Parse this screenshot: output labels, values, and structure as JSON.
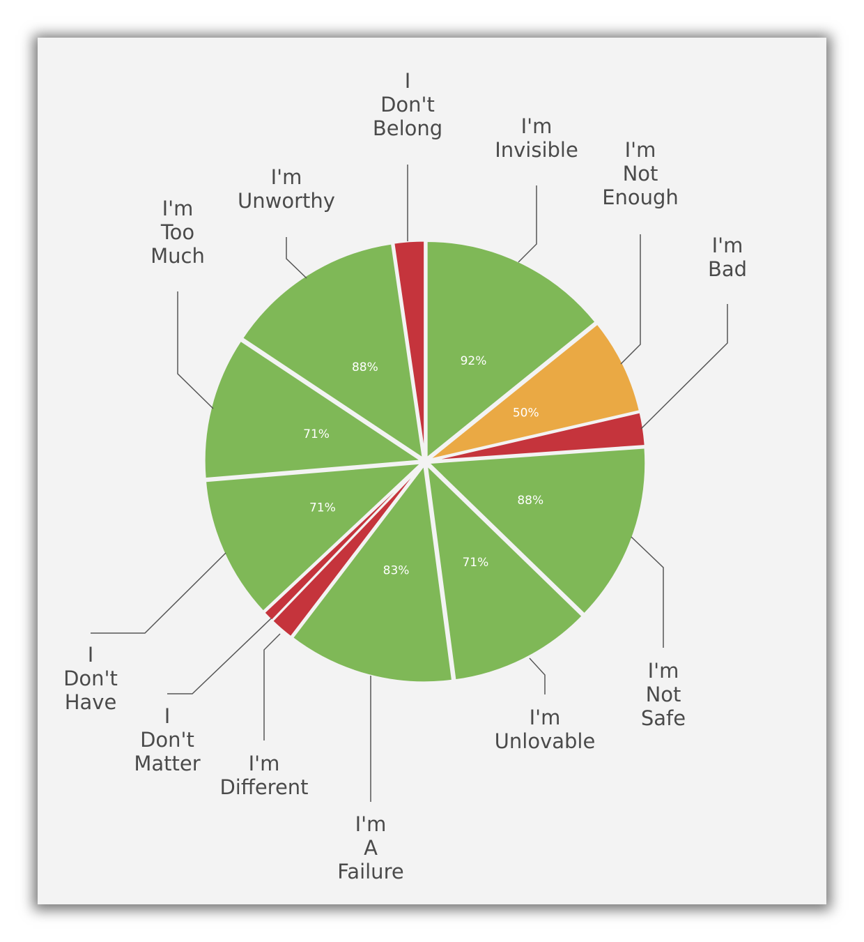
{
  "chart_data": {
    "type": "pie",
    "colors": {
      "high": "#7fb857",
      "medium": "#eaa944",
      "low": "#c5343c",
      "leader": "#555555",
      "background": "#f3f3f3"
    },
    "slices": [
      {
        "name": "I'm Invisible",
        "label_lines": [
          "I'm",
          "Invisible"
        ],
        "weight": 20.4,
        "value": 92,
        "value_label": "92%",
        "color": "high"
      },
      {
        "name": "I'm Not Enough",
        "label_lines": [
          "I'm",
          "Not",
          "Enough"
        ],
        "weight": 10.3,
        "value": 50,
        "value_label": "50%",
        "color": "medium"
      },
      {
        "name": "I'm Bad",
        "label_lines": [
          "I'm",
          "Bad"
        ],
        "weight": 3.6,
        "value": null,
        "value_label": "",
        "color": "low"
      },
      {
        "name": "I'm Not Safe",
        "label_lines": [
          "I'm",
          "Not",
          "Safe"
        ],
        "weight": 19.2,
        "value": 88,
        "value_label": "88%",
        "color": "high"
      },
      {
        "name": "I'm Unlovable",
        "label_lines": [
          "I'm",
          "Unlovable"
        ],
        "weight": 15.3,
        "value": 71,
        "value_label": "71%",
        "color": "high"
      },
      {
        "name": "I'm A Failure",
        "label_lines": [
          "I'm",
          "A",
          "Failure"
        ],
        "weight": 17.9,
        "value": 83,
        "value_label": "83%",
        "color": "high"
      },
      {
        "name": "I'm Different",
        "label_lines": [
          "I'm",
          "Different"
        ],
        "weight": 2.6,
        "value": null,
        "value_label": "",
        "color": "low"
      },
      {
        "name": "I Don't Matter",
        "label_lines": [
          "I",
          "Don't",
          "Matter"
        ],
        "weight": 1.2,
        "value": null,
        "value_label": "",
        "color": "low"
      },
      {
        "name": "I Don't Have",
        "label_lines": [
          "I",
          "Don't",
          "Have"
        ],
        "weight": 15.3,
        "value": 71,
        "value_label": "71%",
        "color": "high"
      },
      {
        "name": "I'm Too Much",
        "label_lines": [
          "I'm",
          "Too",
          "Much"
        ],
        "weight": 15.3,
        "value": 71,
        "value_label": "71%",
        "color": "high"
      },
      {
        "name": "I'm Unworthy",
        "label_lines": [
          "I'm",
          "Unworthy"
        ],
        "weight": 19.2,
        "value": 88,
        "value_label": "88%",
        "color": "high"
      },
      {
        "name": "I Don't Belong",
        "label_lines": [
          "I",
          "Don't",
          "Belong"
        ],
        "weight": 3.3,
        "value": null,
        "value_label": "",
        "color": "low"
      }
    ]
  }
}
